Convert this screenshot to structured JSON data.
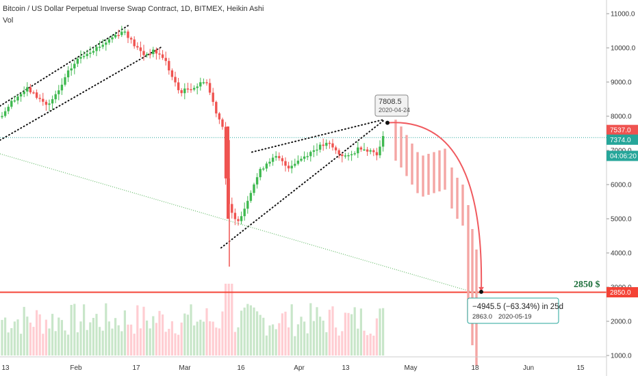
{
  "header": {
    "title": "Bitcoin / US Dollar Perpetual Inverse Swap Contract, 1D, BITMEX, Heikin Ashi",
    "volume_label": "Vol"
  },
  "chart_data": {
    "type": "candlestick",
    "price_axis": {
      "min": 1000,
      "max": 11500,
      "ticks": [
        11000,
        10000,
        9000,
        8000,
        7000,
        6000,
        5000,
        4000,
        3000,
        2000,
        1000
      ],
      "tick_labels": [
        "11000.0",
        "10000.0",
        "9000.0",
        "8000.0",
        "7000.0",
        "6000.0",
        "5000.0",
        "4000.0",
        "3000.0",
        "2000.0",
        "1000.0"
      ]
    },
    "time_axis": {
      "labels": [
        "13",
        "Feb",
        "17",
        "Mar",
        "16",
        "Apr",
        "13",
        "May",
        "18",
        "Jun",
        "15"
      ]
    },
    "price_labels": {
      "current_high": "7537.0",
      "current": "7374.0",
      "countdown": "04:06:20",
      "target": "2850.0"
    },
    "peak_callout": {
      "price": "7808.5",
      "date": "2020-04-24"
    },
    "projection_callout": {
      "change": "−4945.5 (−63.34%) in 25d",
      "price": "2863.0",
      "date": "2020-05-19"
    },
    "target_annotation": "2850 $",
    "colors": {
      "up": "#26a69a",
      "up_light": "#3fb950",
      "down": "#ef5350",
      "projection": "#f0595e",
      "target_line": "#f44336",
      "dotted_green": "#66bb6a",
      "volume_up": "#c8e6c9",
      "volume_down": "#ffcdd2"
    }
  }
}
